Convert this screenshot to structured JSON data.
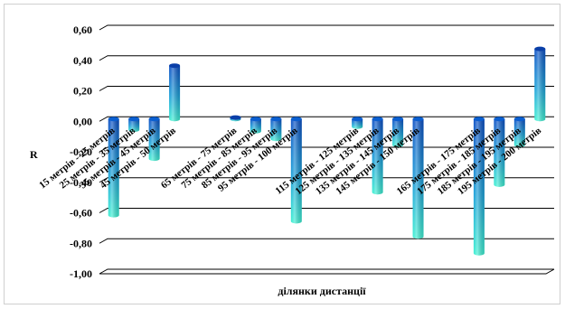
{
  "chart_data": {
    "type": "bar",
    "title": "",
    "xlabel": "ділянки дистанції",
    "ylabel": "R",
    "ylim": [
      -1.0,
      0.6
    ],
    "y_ticks": [
      "0,60",
      "0,40",
      "0,20",
      "0,00",
      "-0,20",
      "-0,40",
      "-0,60",
      "-0,80",
      "-1,00"
    ],
    "grid": true,
    "legend": "none",
    "colors": {
      "top": "#0b55c8",
      "bottom": "#35e6d0",
      "grid": "#000000"
    },
    "categories": [
      "15 метрів - 25 метрів",
      "25 метрів - 35 метрів",
      "35 метрів - 45 метрів",
      "45 метрів - 50 метрів",
      "",
      "",
      "65 метрів - 75 метрів",
      "75 метрів - 85 метрів",
      "85 метрів - 95 метрів",
      "95 метрів - 100 метрів",
      "",
      "",
      "115 метрів - 125 метрів",
      "125 метрів - 135 метрів",
      "135 метрів - 145 метрів",
      "145 метрів - 150 метрів",
      "",
      "",
      "165 метрів - 175 метрів",
      "175 метрів - 185 метрів",
      "185 метрів - 195 метрів",
      "195 метрів - 200 метрів"
    ],
    "values": [
      -0.63,
      -0.07,
      -0.26,
      0.35,
      null,
      null,
      0.01,
      -0.08,
      -0.13,
      -0.67,
      null,
      null,
      -0.05,
      -0.48,
      -0.17,
      -0.77,
      null,
      null,
      -0.88,
      -0.43,
      -0.17,
      0.46
    ]
  }
}
